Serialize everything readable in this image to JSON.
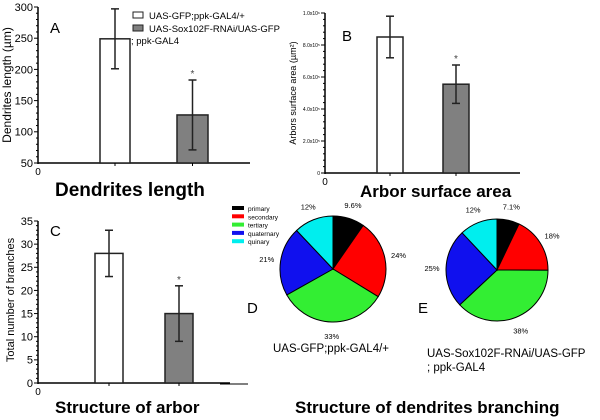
{
  "chart_data": [
    {
      "type": "bar",
      "panel": "A",
      "title": "Dendrites length",
      "ylabel": "Dendrites length (µm)",
      "xlabel": "",
      "ylim": [
        50,
        300
      ],
      "yticks": [
        "50",
        "100",
        "150",
        "200",
        "250",
        "300"
      ],
      "origin_label": "0",
      "categories": [
        "UAS-GFP;ppk-GAL4/+",
        "UAS-Sox102F-RNAi/UAS-GFP ; ppk-GAL4"
      ],
      "values": [
        249,
        127
      ],
      "errors": [
        48,
        56
      ],
      "significance": [
        "",
        "*"
      ],
      "legend": [
        "UAS-GFP;ppk-GAL4/+",
        "UAS-Sox102F-RNAi/UAS-GFP",
        "; ppk-GAL4"
      ]
    },
    {
      "type": "bar",
      "panel": "B",
      "title": "Arbor surface area",
      "ylabel": "Arbors surface area (µm²)",
      "xlabel": "",
      "ylim": [
        0,
        1.0
      ],
      "yticks": [
        "0",
        "2.0x10⁵",
        "4.0x10⁵",
        "6.0x10⁵",
        "8.0x10⁵",
        "1.0x10⁶"
      ],
      "origin_label": "0",
      "categories": [
        "UAS-GFP;ppk-GAL4/+",
        "UAS-Sox102F-RNAi/UAS-GFP ; ppk-GAL4"
      ],
      "values": [
        0.85,
        0.555
      ],
      "errors": [
        0.13,
        0.12
      ],
      "significance": [
        "",
        "*"
      ]
    },
    {
      "type": "bar",
      "panel": "C",
      "title": "Structure of arbor",
      "ylabel": "Total number of branches",
      "xlabel": "",
      "ylim": [
        0,
        35
      ],
      "yticks": [
        "0",
        "5",
        "10",
        "15",
        "20",
        "25",
        "30",
        "35"
      ],
      "origin_label": "0",
      "categories": [
        "UAS-GFP;ppk-GAL4/+",
        "UAS-Sox102F-RNAi/UAS-GFP ; ppk-GAL4"
      ],
      "values": [
        28,
        15
      ],
      "errors": [
        5,
        6
      ],
      "significance": [
        "",
        "*"
      ]
    },
    {
      "type": "pie",
      "panel": "D",
      "caption": [
        "UAS-GFP;ppk-GAL4/+"
      ],
      "labels": [
        "primary",
        "secondary",
        "tertiary",
        "quaternary",
        "quinary"
      ],
      "values": [
        9.6,
        24,
        33,
        21,
        12
      ],
      "value_labels": [
        "9.6%",
        "24%",
        "33%",
        "21%",
        "12%"
      ]
    },
    {
      "type": "pie",
      "panel": "E",
      "caption": [
        "UAS-Sox102F-RNAi/UAS-GFP",
        "; ppk-GAL4"
      ],
      "labels": [
        "primary",
        "secondary",
        "tertiary",
        "quaternary",
        "quinary"
      ],
      "values": [
        7.1,
        18,
        38,
        25,
        12
      ],
      "value_labels": [
        "7.1%",
        "18%",
        "38%",
        "25%",
        "12%"
      ]
    }
  ],
  "pie_title": "Structure of dendrites branching",
  "pie_legend": [
    "primary",
    "secondary",
    "tertiary",
    "quaternary",
    "quinary"
  ],
  "colors": {
    "pie": [
      "#000000",
      "#ff0000",
      "#33ee33",
      "#1010ee",
      "#00eeee"
    ],
    "bar": [
      "#ffffff",
      "#808080"
    ]
  }
}
